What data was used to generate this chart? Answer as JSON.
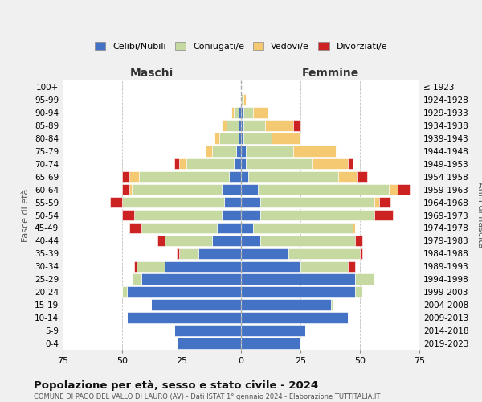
{
  "age_groups": [
    "0-4",
    "5-9",
    "10-14",
    "15-19",
    "20-24",
    "25-29",
    "30-34",
    "35-39",
    "40-44",
    "45-49",
    "50-54",
    "55-59",
    "60-64",
    "65-69",
    "70-74",
    "75-79",
    "80-84",
    "85-89",
    "90-94",
    "95-99",
    "100+"
  ],
  "birth_years": [
    "2019-2023",
    "2014-2018",
    "2009-2013",
    "2004-2008",
    "1999-2003",
    "1994-1998",
    "1989-1993",
    "1984-1988",
    "1979-1983",
    "1974-1978",
    "1969-1973",
    "1964-1968",
    "1959-1963",
    "1954-1958",
    "1949-1953",
    "1944-1948",
    "1939-1943",
    "1934-1938",
    "1929-1933",
    "1924-1928",
    "≤ 1923"
  ],
  "maschi": {
    "celibi": [
      27,
      28,
      48,
      38,
      48,
      42,
      32,
      18,
      12,
      10,
      8,
      7,
      8,
      5,
      3,
      2,
      1,
      1,
      1,
      0,
      0
    ],
    "coniugati": [
      0,
      0,
      0,
      0,
      2,
      4,
      12,
      8,
      20,
      32,
      37,
      43,
      38,
      38,
      20,
      10,
      8,
      5,
      2,
      0,
      0
    ],
    "vedovi": [
      0,
      0,
      0,
      0,
      0,
      0,
      0,
      0,
      0,
      0,
      0,
      0,
      1,
      4,
      3,
      3,
      2,
      2,
      1,
      0,
      0
    ],
    "divorziati": [
      0,
      0,
      0,
      0,
      0,
      0,
      1,
      1,
      3,
      5,
      5,
      5,
      3,
      3,
      2,
      0,
      0,
      0,
      0,
      0,
      0
    ]
  },
  "femmine": {
    "nubili": [
      25,
      27,
      45,
      38,
      48,
      48,
      25,
      20,
      8,
      5,
      8,
      8,
      7,
      3,
      2,
      2,
      1,
      1,
      1,
      0,
      0
    ],
    "coniugate": [
      0,
      0,
      0,
      1,
      3,
      8,
      20,
      30,
      40,
      42,
      48,
      48,
      55,
      38,
      28,
      20,
      12,
      9,
      4,
      1,
      0
    ],
    "vedove": [
      0,
      0,
      0,
      0,
      0,
      0,
      0,
      0,
      0,
      1,
      0,
      2,
      4,
      8,
      15,
      18,
      12,
      12,
      6,
      1,
      0
    ],
    "divorziate": [
      0,
      0,
      0,
      0,
      0,
      0,
      3,
      1,
      3,
      0,
      8,
      5,
      5,
      4,
      2,
      0,
      0,
      3,
      0,
      0,
      0
    ]
  },
  "colors": {
    "celibi": "#4472c4",
    "coniugati": "#c5d9a0",
    "vedovi": "#f5c872",
    "divorziati": "#cc2222"
  },
  "xlim": 75,
  "title": "Popolazione per età, sesso e stato civile - 2024",
  "subtitle": "COMUNE DI PAGO DEL VALLO DI LAURO (AV) - Dati ISTAT 1° gennaio 2024 - Elaborazione TUTTITALIA.IT",
  "xlabel_left": "Maschi",
  "xlabel_right": "Femmine",
  "ylabel_left": "Fasce di età",
  "ylabel_right": "Anni di nascita",
  "legend_labels": [
    "Celibi/Nubili",
    "Coniugati/e",
    "Vedovi/e",
    "Divorziati/e"
  ],
  "bg_color": "#f0f0f0",
  "plot_bg_color": "#ffffff"
}
